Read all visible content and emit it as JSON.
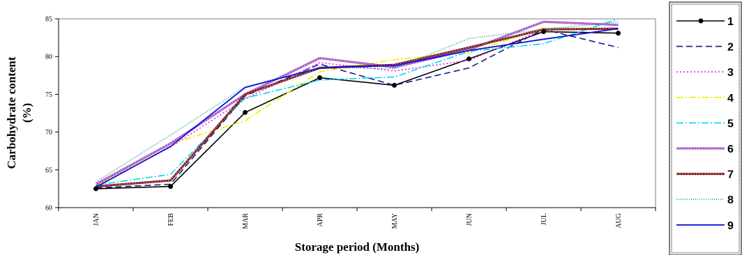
{
  "chart_data": {
    "type": "line",
    "title": "",
    "xlabel": "Storage period (Months)",
    "ylabel_line1": "Carbohydrate content",
    "ylabel_line2": "(%)",
    "categories": [
      "JAN",
      "FEB",
      "MAR",
      "APR",
      "MAY",
      "JUN",
      "JUL",
      "AUG"
    ],
    "y_ticks": [
      "60",
      "65",
      "70",
      "75",
      "80",
      "85"
    ],
    "ylim": [
      60,
      85
    ],
    "grid": false,
    "legend_position": "right",
    "series": [
      {
        "name": "1",
        "color": "#000000",
        "dash": "",
        "width": 1.6,
        "markers": true,
        "values": [
          62.5,
          62.8,
          72.6,
          77.2,
          76.2,
          79.7,
          83.3,
          83.1
        ]
      },
      {
        "name": "2",
        "color": "#1a1a80",
        "dash": "9,5",
        "width": 1.6,
        "markers": false,
        "values": [
          62.6,
          63.1,
          74.8,
          79.0,
          76.2,
          78.5,
          83.6,
          81.2
        ]
      },
      {
        "name": "3",
        "color": "#e020e0",
        "dash": "2,3",
        "width": 1.6,
        "markers": false,
        "values": [
          62.9,
          68.0,
          74.4,
          79.2,
          78.1,
          79.5,
          83.6,
          83.7
        ]
      },
      {
        "name": "4",
        "color": "#f0f000",
        "dash": "10,3,2,3",
        "width": 1.6,
        "markers": false,
        "values": [
          62.9,
          68.4,
          71.5,
          78.0,
          79.6,
          80.5,
          83.8,
          83.6
        ]
      },
      {
        "name": "5",
        "color": "#00d8f0",
        "dash": "10,3,2,3",
        "width": 1.6,
        "markers": false,
        "values": [
          63.0,
          64.4,
          74.5,
          76.9,
          77.3,
          80.7,
          81.7,
          85.0
        ]
      },
      {
        "name": "6",
        "color": "#a050c0",
        "dash": "",
        "width": 3.0,
        "markers": false,
        "values": [
          63.1,
          68.5,
          75.0,
          79.8,
          78.6,
          80.9,
          84.6,
          84.2
        ]
      },
      {
        "name": "7",
        "color": "#7a1010",
        "dash": "",
        "width": 3.0,
        "markers": false,
        "values": [
          62.8,
          63.6,
          75.0,
          78.5,
          78.9,
          81.2,
          83.6,
          83.7
        ]
      },
      {
        "name": "8",
        "color": "#30a0a0",
        "dash": "1,2",
        "width": 1.8,
        "markers": false,
        "values": [
          63.4,
          69.6,
          76.0,
          78.6,
          78.4,
          82.4,
          83.6,
          84.6
        ]
      },
      {
        "name": "9",
        "color": "#1010e0",
        "dash": "",
        "width": 1.8,
        "markers": false,
        "values": [
          62.7,
          68.1,
          75.9,
          78.5,
          78.8,
          80.8,
          82.3,
          83.7
        ]
      }
    ]
  }
}
